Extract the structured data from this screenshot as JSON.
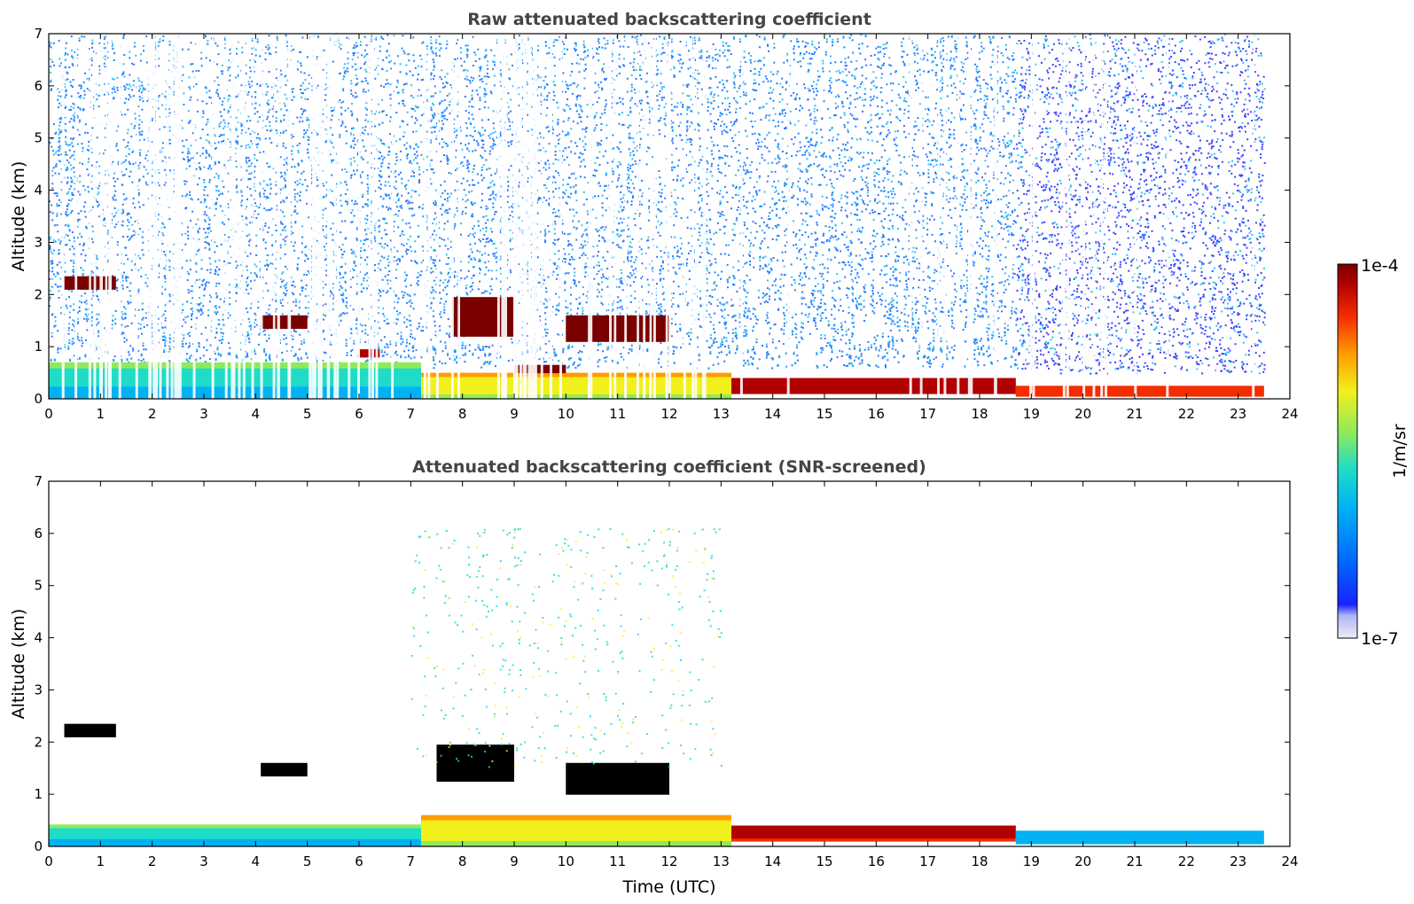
{
  "chart_data": [
    {
      "type": "heatmap",
      "title": "Raw attenuated backscattering coefficient",
      "xlabel": "",
      "ylabel": "Altitude (km)",
      "xlim": [
        0,
        24
      ],
      "ylim": [
        0,
        7
      ],
      "x_ticks": [
        "0",
        "1",
        "2",
        "3",
        "4",
        "5",
        "6",
        "7",
        "8",
        "9",
        "10",
        "11",
        "12",
        "13",
        "14",
        "15",
        "16",
        "17",
        "18",
        "19",
        "20",
        "21",
        "22",
        "23",
        "24"
      ],
      "y_ticks": [
        "0",
        "1",
        "2",
        "3",
        "4",
        "5",
        "6",
        "7"
      ],
      "layers": [
        {
          "name": "noise-background",
          "x": [
            0,
            18.7
          ],
          "alt": [
            0.6,
            7
          ],
          "level": 0.25
        },
        {
          "name": "noise-background-late",
          "x": [
            18.7,
            23.5
          ],
          "alt": [
            0.5,
            7
          ],
          "level": 0.22
        },
        {
          "name": "boundary-layer-morning",
          "x": [
            0,
            7.2
          ],
          "alt": [
            0,
            0.7
          ],
          "level": 0.3
        },
        {
          "name": "boundary-layer-day",
          "x": [
            7.2,
            13.2
          ],
          "alt": [
            0,
            0.5
          ],
          "level": 0.5
        },
        {
          "name": "aerosol-layer-evening",
          "x": [
            13.2,
            18.7
          ],
          "alt": [
            0.1,
            0.4
          ],
          "level": 0.9
        },
        {
          "name": "aerosol-layer-night",
          "x": [
            18.7,
            23.5
          ],
          "alt": [
            0.05,
            0.25
          ],
          "level": 0.8
        },
        {
          "name": "cloud",
          "x": [
            0.3,
            1.3
          ],
          "alt": [
            2.1,
            2.35
          ],
          "level": 1.0
        },
        {
          "name": "cloud",
          "x": [
            4.1,
            5.0
          ],
          "alt": [
            1.35,
            1.6
          ],
          "level": 0.95
        },
        {
          "name": "cloud",
          "x": [
            6.0,
            6.4
          ],
          "alt": [
            0.8,
            0.95
          ],
          "level": 0.9
        },
        {
          "name": "cloud",
          "x": [
            7.8,
            9.0
          ],
          "alt": [
            1.2,
            1.95
          ],
          "level": 1.0
        },
        {
          "name": "cloud",
          "x": [
            9.0,
            10.0
          ],
          "alt": [
            0.5,
            0.65
          ],
          "level": 1.0
        },
        {
          "name": "cloud",
          "x": [
            10.0,
            12.0
          ],
          "alt": [
            1.1,
            1.6
          ],
          "level": 0.95
        }
      ]
    },
    {
      "type": "heatmap",
      "title": "Attenuated backscattering coefficient (SNR-screened)",
      "xlabel": "Time (UTC)",
      "ylabel": "Altitude (km)",
      "xlim": [
        0,
        24
      ],
      "ylim": [
        0,
        7
      ],
      "x_ticks": [
        "0",
        "1",
        "2",
        "3",
        "4",
        "5",
        "6",
        "7",
        "8",
        "9",
        "10",
        "11",
        "12",
        "13",
        "14",
        "15",
        "16",
        "17",
        "18",
        "19",
        "20",
        "21",
        "22",
        "23",
        "24"
      ],
      "y_ticks": [
        "0",
        "1",
        "2",
        "3",
        "4",
        "5",
        "6",
        "7"
      ],
      "layers": [
        {
          "name": "boundary-layer-morning",
          "x": [
            0,
            7.2
          ],
          "alt": [
            0,
            0.42
          ],
          "level": 0.3
        },
        {
          "name": "boundary-layer-day",
          "x": [
            7.2,
            13.2
          ],
          "alt": [
            0,
            0.6
          ],
          "level": 0.5
        },
        {
          "name": "aerosol-layer-evening",
          "x": [
            13.2,
            18.7
          ],
          "alt": [
            0.1,
            0.4
          ],
          "level": 0.85
        },
        {
          "name": "aerosol-layer-night",
          "x": [
            18.7,
            23.5
          ],
          "alt": [
            0.05,
            0.3
          ],
          "level": 0.35
        },
        {
          "name": "cloud-saturated",
          "x": [
            0.3,
            1.3
          ],
          "alt": [
            2.1,
            2.35
          ],
          "level": 1.1
        },
        {
          "name": "cloud-saturated",
          "x": [
            4.1,
            5.0
          ],
          "alt": [
            1.35,
            1.6
          ],
          "level": 1.1
        },
        {
          "name": "cloud-saturated",
          "x": [
            7.5,
            9.0
          ],
          "alt": [
            1.25,
            1.95
          ],
          "level": 1.1
        },
        {
          "name": "cloud-saturated",
          "x": [
            10.0,
            12.0
          ],
          "alt": [
            1.0,
            1.6
          ],
          "level": 1.1
        },
        {
          "name": "scattered-signal",
          "x": [
            7.0,
            13.0
          ],
          "alt": [
            1.5,
            6.1
          ],
          "level": 0.45
        }
      ]
    }
  ],
  "colorbar": {
    "label": "1/m/sr",
    "max_label": "1e-4",
    "min_label": "1e-7",
    "scale": "log",
    "range": [
      1e-07,
      0.0001
    ],
    "colormap": [
      "#ecedfa",
      "#b0b4f2",
      "#1a22ff",
      "#0066ff",
      "#00b2f4",
      "#1fdcc8",
      "#8eea5a",
      "#f2f01c",
      "#ff9c00",
      "#f52c00",
      "#b00000",
      "#7a0000"
    ]
  }
}
